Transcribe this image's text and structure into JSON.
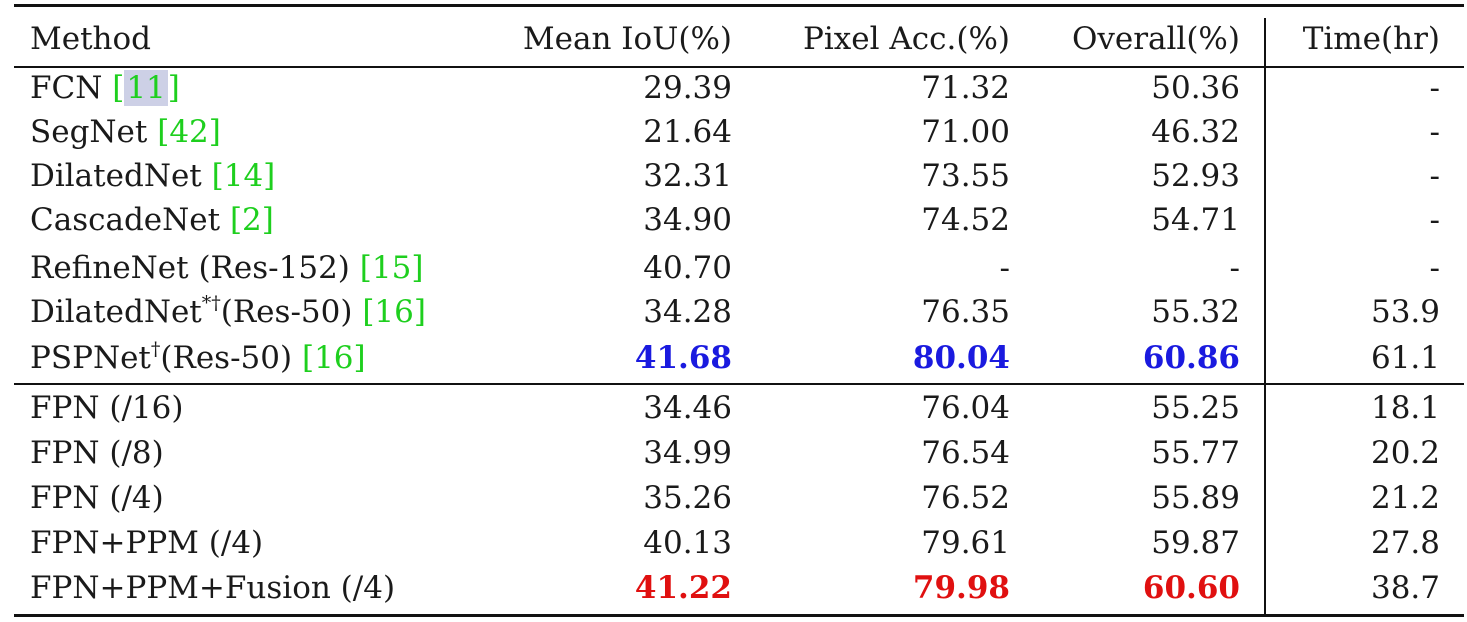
{
  "table": {
    "columns": [
      "Method",
      "Mean IoU(%)",
      "Pixel Acc.(%)",
      "Overall(%)",
      "Time(hr)"
    ],
    "rows": [
      {
        "name": "FCN ",
        "sup": "",
        "suffix": "",
        "ref": "11",
        "miou": "29.39",
        "pix": "71.32",
        "overall": "50.36",
        "time": "-"
      },
      {
        "name": "SegNet ",
        "sup": "",
        "suffix": "",
        "ref": "42",
        "miou": "21.64",
        "pix": "71.00",
        "overall": "46.32",
        "time": "-"
      },
      {
        "name": "DilatedNet ",
        "sup": "",
        "suffix": "",
        "ref": "14",
        "miou": "32.31",
        "pix": "73.55",
        "overall": "52.93",
        "time": "-"
      },
      {
        "name": "CascadeNet ",
        "sup": "",
        "suffix": "",
        "ref": "2",
        "miou": "34.90",
        "pix": "74.52",
        "overall": "54.71",
        "time": "-"
      },
      {
        "name": "RefineNet (Res-152) ",
        "sup": "",
        "suffix": "",
        "ref": "15",
        "miou": "40.70",
        "pix": "-",
        "overall": "-",
        "time": "-"
      },
      {
        "name": "DilatedNet",
        "sup": "*†",
        "suffix": "(Res-50) ",
        "ref": "16",
        "miou": "34.28",
        "pix": "76.35",
        "overall": "55.32",
        "time": "53.9"
      },
      {
        "name": "PSPNet",
        "sup": "†",
        "suffix": "(Res-50) ",
        "ref": "16",
        "miou": "41.68",
        "pix": "80.04",
        "overall": "60.86",
        "time": "61.1"
      },
      {
        "name": "FPN (/16)",
        "sup": "",
        "suffix": "",
        "ref": "",
        "miou": "34.46",
        "pix": "76.04",
        "overall": "55.25",
        "time": "18.1"
      },
      {
        "name": "FPN (/8)",
        "sup": "",
        "suffix": "",
        "ref": "",
        "miou": "34.99",
        "pix": "76.54",
        "overall": "55.77",
        "time": "20.2"
      },
      {
        "name": "FPN (/4)",
        "sup": "",
        "suffix": "",
        "ref": "",
        "miou": "35.26",
        "pix": "76.52",
        "overall": "55.89",
        "time": "21.2"
      },
      {
        "name": "FPN+PPM (/4)",
        "sup": "",
        "suffix": "",
        "ref": "",
        "miou": "40.13",
        "pix": "79.61",
        "overall": "59.87",
        "time": "27.8"
      },
      {
        "name": "FPN+PPM+Fusion (/4)",
        "sup": "",
        "suffix": "",
        "ref": "",
        "miou": "41.22",
        "pix": "79.98",
        "overall": "60.60",
        "time": "38.7"
      }
    ]
  },
  "colors": {
    "best": "#1a1adf",
    "second": "#e01010",
    "citation": "#1ecf1e",
    "citation_highlight": "#cdd0e6"
  }
}
